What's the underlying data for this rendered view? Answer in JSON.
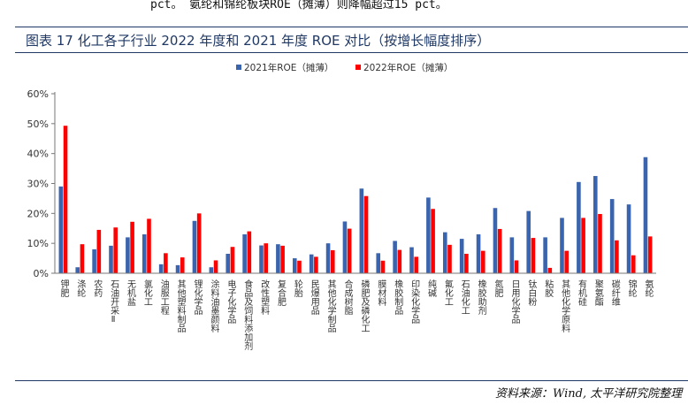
{
  "header": {
    "top_text": "pct。 氨纶和锦纶板块ROE（摊薄）则降幅超过15 pct。",
    "title": "图表 17 化工各子行业 2022 年度和 2021 年度 ROE 对比（按增长幅度排序）"
  },
  "footer": {
    "source": "资料来源：Wind, 太平洋研究院整理"
  },
  "colors": {
    "series_2021": "#3a64ad",
    "series_2022": "#ff0000",
    "border": "#1f3864"
  },
  "chart_data": {
    "type": "bar",
    "categories": [
      "钾肥",
      "涤纶",
      "农药",
      "石油开采Ⅱ",
      "无机盐",
      "氯化工",
      "油服工程",
      "其他塑料制品",
      "锂化学品",
      "涂料油墨颜料",
      "电子化学品",
      "食品及饲料添加剂",
      "改性塑料",
      "复合肥",
      "轮胎",
      "民爆用品",
      "其他化学制品",
      "合成树脂",
      "磷肥及磷化工",
      "膜材料",
      "橡胶制品",
      "印染化学品",
      "纯碱",
      "氟化工",
      "石油化工",
      "橡胶助剂",
      "氮肥",
      "日用化学品",
      "钛白粉",
      "粘胶",
      "其他化学原料",
      "有机硅",
      "聚氨酯",
      "碳纤维",
      "锦纶",
      "氨纶"
    ],
    "series": [
      {
        "name": "2021年ROE（摊薄）",
        "values": [
          29.0,
          2.0,
          8.0,
          9.2,
          12.0,
          13.0,
          3.0,
          2.7,
          17.5,
          2.0,
          6.5,
          13.0,
          9.3,
          9.7,
          5.0,
          6.3,
          10.0,
          17.3,
          28.3,
          6.7,
          10.8,
          8.7,
          25.3,
          13.7,
          11.5,
          13.0,
          21.8,
          12.0,
          20.8,
          12.0,
          18.5,
          30.5,
          32.5,
          24.8,
          23.0,
          38.8
        ]
      },
      {
        "name": "2022年ROE（摊薄）",
        "values": [
          49.3,
          9.7,
          14.5,
          15.3,
          17.2,
          18.2,
          6.7,
          5.3,
          20.0,
          4.3,
          8.8,
          14.0,
          10.0,
          9.2,
          4.2,
          5.5,
          7.7,
          14.9,
          25.8,
          4.2,
          7.8,
          5.5,
          21.5,
          9.5,
          6.5,
          7.5,
          14.8,
          4.3,
          11.8,
          1.8,
          7.5,
          18.5,
          19.8,
          11.0,
          6.0,
          12.3
        ]
      }
    ],
    "yticks": [
      "0%",
      "10%",
      "20%",
      "30%",
      "40%",
      "50%",
      "60%"
    ],
    "ylim": [
      0,
      60
    ],
    "legend_position": "top-center"
  }
}
